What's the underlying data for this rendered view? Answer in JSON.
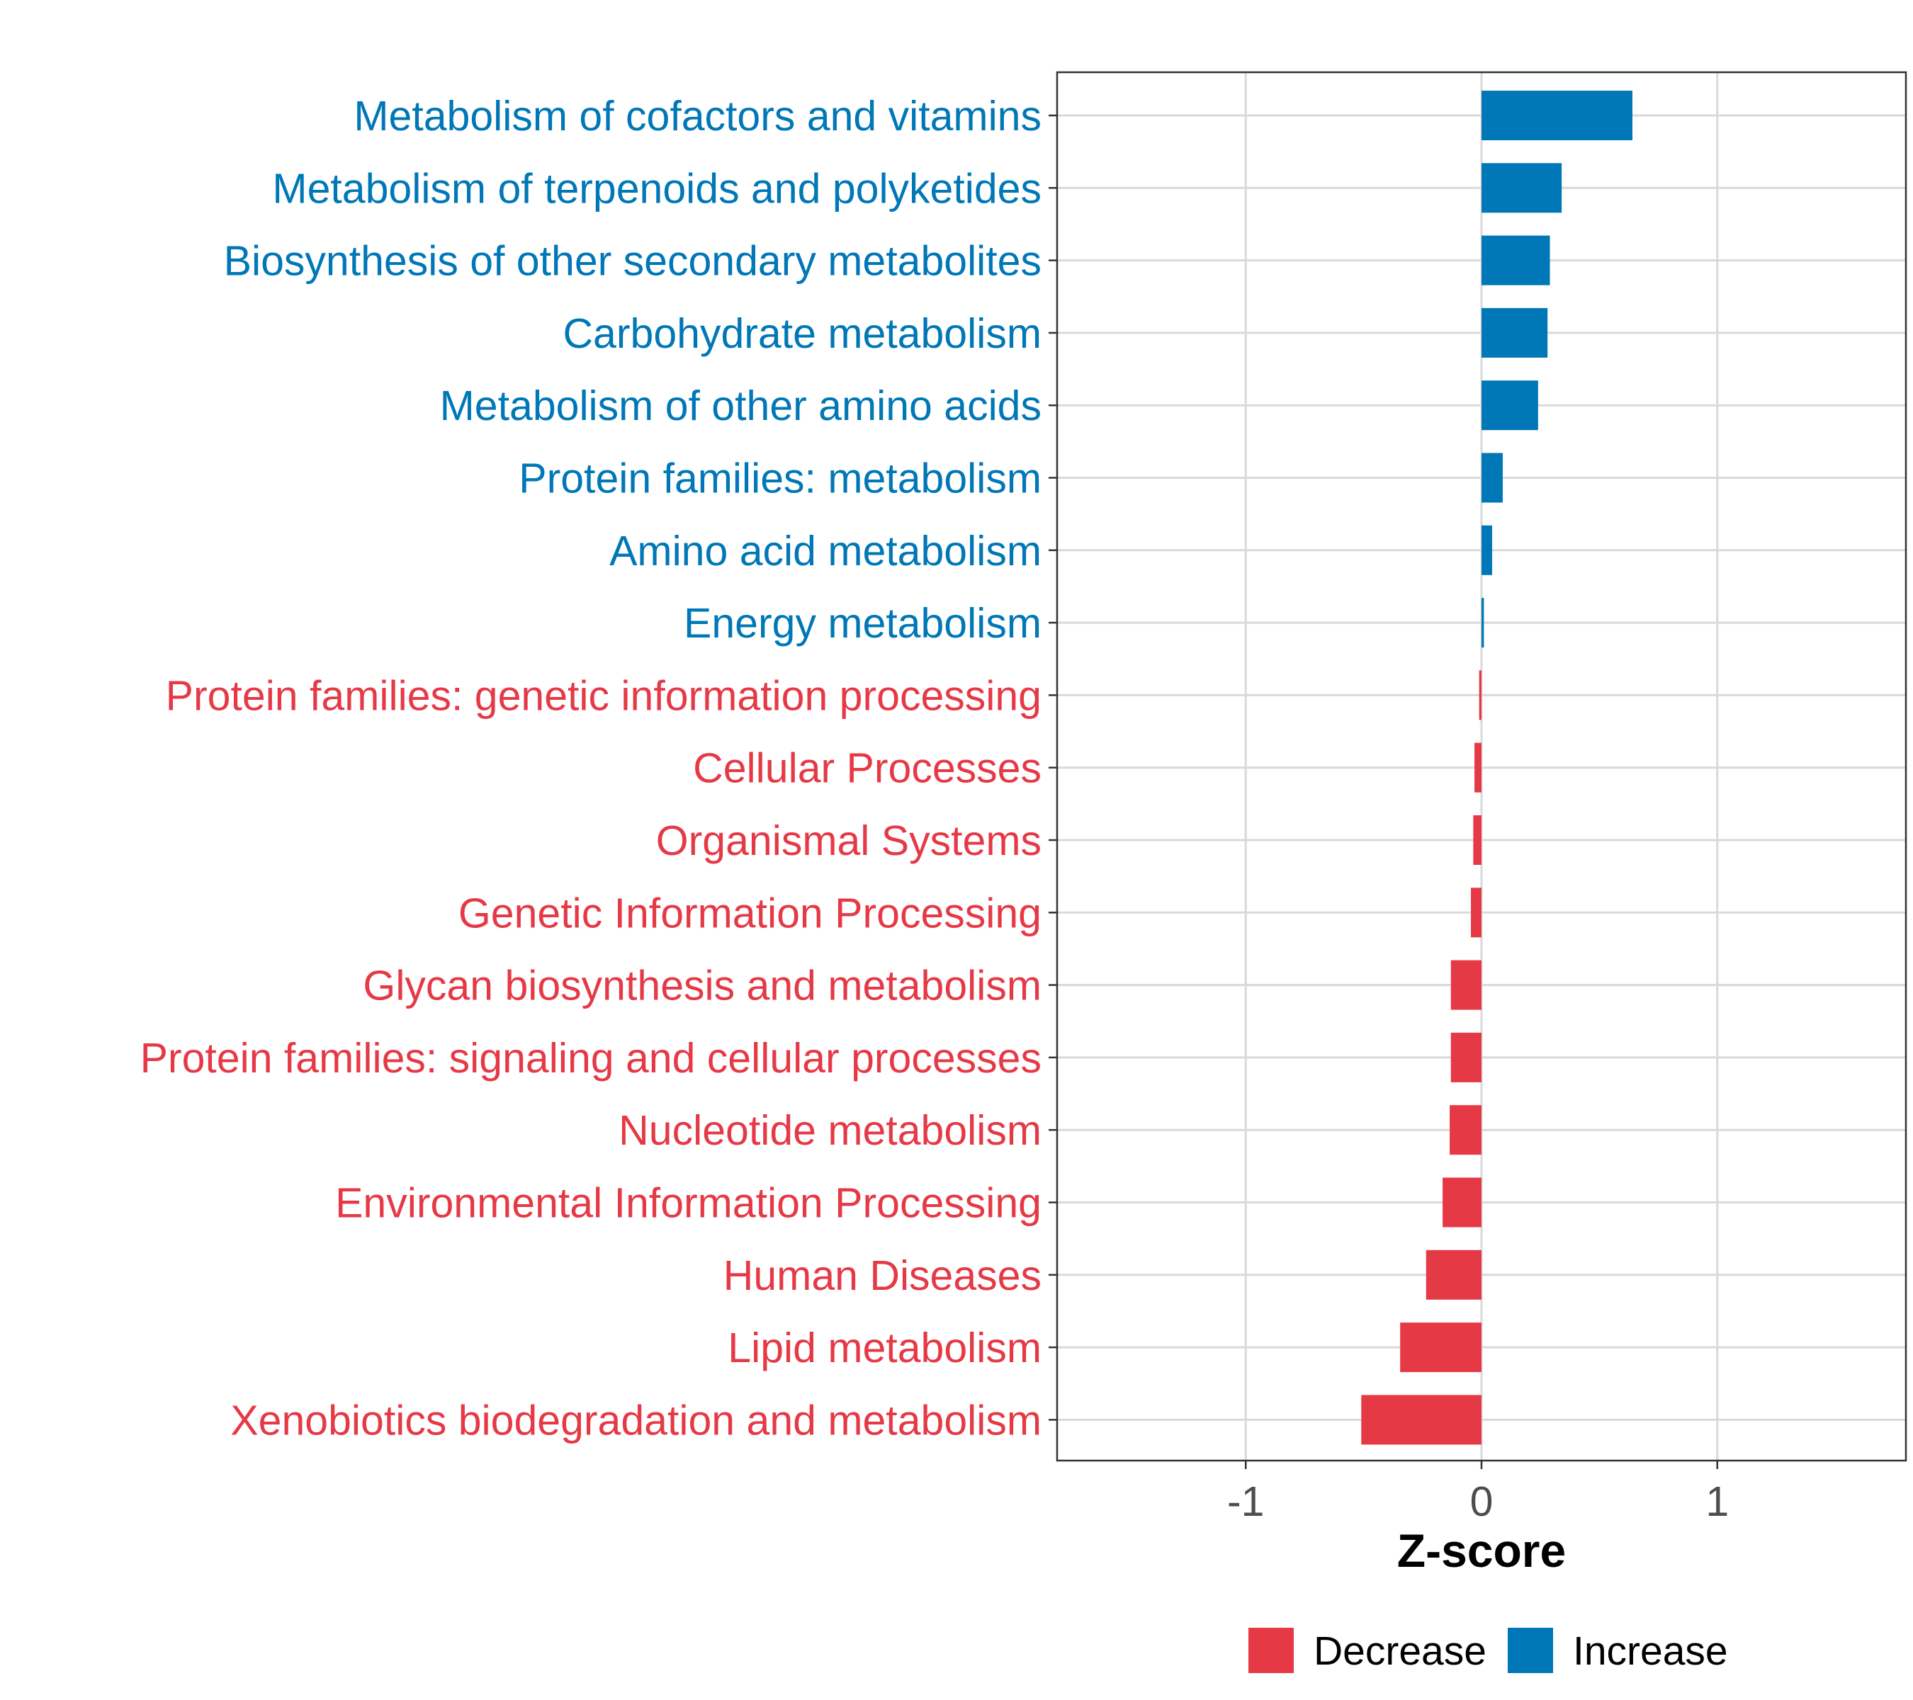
{
  "chart_data": {
    "type": "bar",
    "orientation": "horizontal",
    "title": "",
    "xlabel": "Z-score",
    "ylabel": "",
    "xlim": [
      -1.8,
      1.8
    ],
    "xticks": [
      -1,
      0,
      1
    ],
    "xtick_labels": [
      "-1",
      "0",
      "1"
    ],
    "grid": true,
    "legend_position": "bottom",
    "colors": {
      "Decrease": "#e63946",
      "Increase": "#0077b6"
    },
    "legend": [
      {
        "label": "Decrease",
        "color": "#e63946"
      },
      {
        "label": "Increase",
        "color": "#0077b6"
      }
    ],
    "categories": [
      "Metabolism of cofactors and vitamins",
      "Metabolism of terpenoids and polyketides",
      "Biosynthesis of other secondary metabolites",
      "Carbohydrate metabolism",
      "Metabolism of other amino acids",
      "Protein families: metabolism",
      "Amino acid metabolism",
      "Energy metabolism",
      "Protein families: genetic information processing",
      "Cellular Processes",
      "Organismal Systems",
      "Genetic Information Processing",
      "Glycan biosynthesis and metabolism",
      "Protein families: signaling and cellular processes",
      "Nucleotide metabolism",
      "Environmental Information Processing",
      "Human Diseases",
      "Lipid metabolism",
      "Xenobiotics biodegradation and metabolism"
    ],
    "values": [
      0.64,
      0.34,
      0.29,
      0.28,
      0.24,
      0.09,
      0.045,
      0.01,
      -0.01,
      -0.03,
      -0.035,
      -0.045,
      -0.13,
      -0.13,
      -0.135,
      -0.165,
      -0.235,
      -0.345,
      -0.51
    ],
    "groups": [
      "Increase",
      "Increase",
      "Increase",
      "Increase",
      "Increase",
      "Increase",
      "Increase",
      "Increase",
      "Decrease",
      "Decrease",
      "Decrease",
      "Decrease",
      "Decrease",
      "Decrease",
      "Decrease",
      "Decrease",
      "Decrease",
      "Decrease",
      "Decrease"
    ]
  }
}
